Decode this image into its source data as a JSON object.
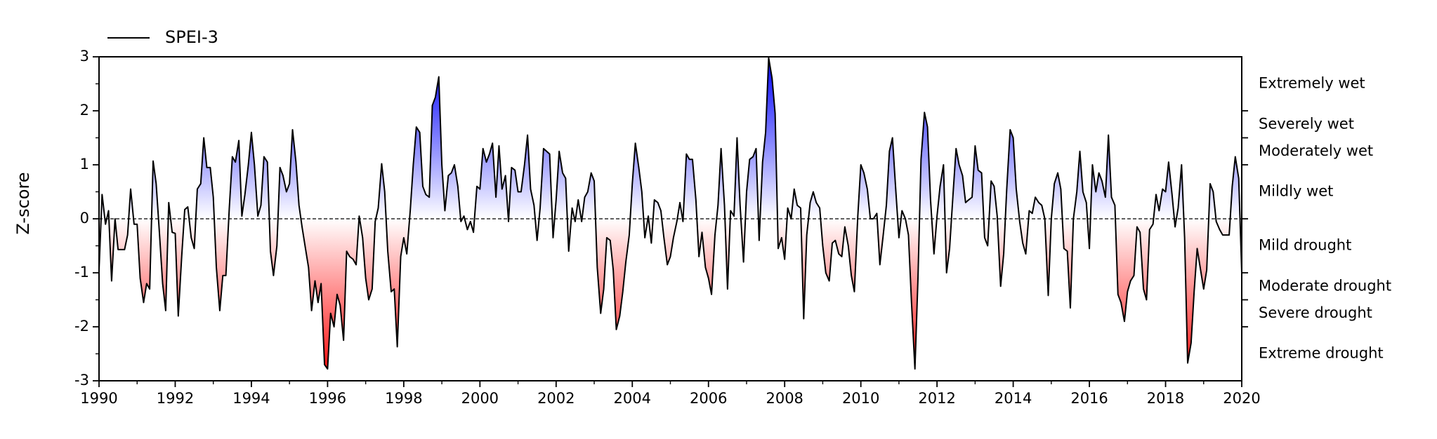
{
  "chart_data": {
    "type": "line",
    "ylabel": "Z-score",
    "x": [
      1990,
      1990.08,
      1990.17,
      1990.25,
      1990.33,
      1990.42,
      1990.5,
      1990.58,
      1990.67,
      1990.75,
      1990.83,
      1990.92,
      1991,
      1991.08,
      1991.17,
      1991.25,
      1991.33,
      1991.42,
      1991.5,
      1991.58,
      1991.67,
      1991.75,
      1991.83,
      1991.92,
      1992,
      1992.08,
      1992.17,
      1992.25,
      1992.33,
      1992.42,
      1992.5,
      1992.58,
      1992.67,
      1992.75,
      1992.83,
      1992.92,
      1993,
      1993.08,
      1993.17,
      1993.25,
      1993.33,
      1993.42,
      1993.5,
      1993.58,
      1993.67,
      1993.75,
      1993.83,
      1993.92,
      1994,
      1994.08,
      1994.17,
      1994.25,
      1994.33,
      1994.42,
      1994.5,
      1994.58,
      1994.67,
      1994.75,
      1994.83,
      1994.92,
      1995,
      1995.08,
      1995.17,
      1995.25,
      1995.33,
      1995.42,
      1995.5,
      1995.58,
      1995.67,
      1995.75,
      1995.83,
      1995.92,
      1996,
      1996.08,
      1996.17,
      1996.25,
      1996.33,
      1996.42,
      1996.5,
      1996.58,
      1996.67,
      1996.75,
      1996.83,
      1996.92,
      1997,
      1997.08,
      1997.17,
      1997.25,
      1997.33,
      1997.42,
      1997.5,
      1997.58,
      1997.67,
      1997.75,
      1997.83,
      1997.92,
      1998,
      1998.08,
      1998.17,
      1998.25,
      1998.33,
      1998.42,
      1998.5,
      1998.58,
      1998.67,
      1998.75,
      1998.83,
      1998.92,
      1999,
      1999.08,
      1999.17,
      1999.25,
      1999.33,
      1999.42,
      1999.5,
      1999.58,
      1999.67,
      1999.75,
      1999.83,
      1999.92,
      2000,
      2000.08,
      2000.17,
      2000.25,
      2000.33,
      2000.42,
      2000.5,
      2000.58,
      2000.67,
      2000.75,
      2000.83,
      2000.92,
      2001,
      2001.08,
      2001.17,
      2001.25,
      2001.33,
      2001.42,
      2001.5,
      2001.58,
      2001.67,
      2001.75,
      2001.83,
      2001.92,
      2002,
      2002.08,
      2002.17,
      2002.25,
      2002.33,
      2002.42,
      2002.5,
      2002.58,
      2002.67,
      2002.75,
      2002.83,
      2002.92,
      2003,
      2003.08,
      2003.17,
      2003.25,
      2003.33,
      2003.42,
      2003.5,
      2003.58,
      2003.67,
      2003.75,
      2003.83,
      2003.92,
      2004,
      2004.08,
      2004.17,
      2004.25,
      2004.33,
      2004.42,
      2004.5,
      2004.58,
      2004.67,
      2004.75,
      2004.83,
      2004.92,
      2005,
      2005.08,
      2005.17,
      2005.25,
      2005.33,
      2005.42,
      2005.5,
      2005.58,
      2005.67,
      2005.75,
      2005.83,
      2005.92,
      2006,
      2006.08,
      2006.17,
      2006.25,
      2006.33,
      2006.42,
      2006.5,
      2006.58,
      2006.67,
      2006.75,
      2006.83,
      2006.92,
      2007,
      2007.08,
      2007.17,
      2007.25,
      2007.33,
      2007.42,
      2007.5,
      2007.58,
      2007.67,
      2007.75,
      2007.83,
      2007.92,
      2008,
      2008.08,
      2008.17,
      2008.25,
      2008.33,
      2008.42,
      2008.5,
      2008.58,
      2008.67,
      2008.75,
      2008.83,
      2008.92,
      2009,
      2009.08,
      2009.17,
      2009.25,
      2009.33,
      2009.42,
      2009.5,
      2009.58,
      2009.67,
      2009.75,
      2009.83,
      2009.92,
      2010,
      2010.08,
      2010.17,
      2010.25,
      2010.33,
      2010.42,
      2010.5,
      2010.58,
      2010.67,
      2010.75,
      2010.83,
      2010.92,
      2011,
      2011.08,
      2011.17,
      2011.25,
      2011.33,
      2011.42,
      2011.5,
      2011.58,
      2011.67,
      2011.75,
      2011.83,
      2011.92,
      2012,
      2012.08,
      2012.17,
      2012.25,
      2012.33,
      2012.42,
      2012.5,
      2012.58,
      2012.67,
      2012.75,
      2012.83,
      2012.92,
      2013,
      2013.08,
      2013.17,
      2013.25,
      2013.33,
      2013.42,
      2013.5,
      2013.58,
      2013.67,
      2013.75,
      2013.83,
      2013.92,
      2014,
      2014.08,
      2014.17,
      2014.25,
      2014.33,
      2014.42,
      2014.5,
      2014.58,
      2014.67,
      2014.75,
      2014.83,
      2014.92,
      2015,
      2015.08,
      2015.17,
      2015.25,
      2015.33,
      2015.42,
      2015.5,
      2015.58,
      2015.67,
      2015.75,
      2015.83,
      2015.92,
      2016,
      2016.08,
      2016.17,
      2016.25,
      2016.33,
      2016.42,
      2016.5,
      2016.58,
      2016.67,
      2016.75,
      2016.83,
      2016.92,
      2017,
      2017.08,
      2017.17,
      2017.25,
      2017.33,
      2017.42,
      2017.5,
      2017.58,
      2017.67,
      2017.75,
      2017.83,
      2017.92,
      2018,
      2018.08,
      2018.17,
      2018.25,
      2018.33,
      2018.42,
      2018.5,
      2018.58,
      2018.67,
      2018.75,
      2018.83,
      2018.92,
      2019,
      2019.08,
      2019.17,
      2019.25,
      2019.33,
      2019.42,
      2019.5,
      2019.58,
      2019.67,
      2019.75,
      2019.83,
      2019.92,
      2020
    ],
    "series": [
      {
        "name": "SPEI-3",
        "color": "#000000",
        "values": [
          -0.95,
          0.45,
          -0.1,
          0.15,
          -1.15,
          0.0,
          -0.57,
          -0.57,
          -0.57,
          -0.3,
          0.55,
          -0.1,
          -0.1,
          -1.1,
          -1.55,
          -1.2,
          -1.3,
          1.07,
          0.65,
          -0.2,
          -1.2,
          -1.7,
          0.3,
          -0.25,
          -0.27,
          -1.8,
          -0.7,
          0.17,
          0.22,
          -0.35,
          -0.55,
          0.55,
          0.65,
          1.5,
          0.95,
          0.95,
          0.4,
          -0.9,
          -1.7,
          -1.05,
          -1.05,
          0.2,
          1.15,
          1.05,
          1.45,
          0.05,
          0.45,
          1.0,
          1.6,
          1.0,
          0.05,
          0.25,
          1.15,
          1.05,
          -0.6,
          -1.05,
          -0.5,
          0.95,
          0.8,
          0.5,
          0.65,
          1.65,
          1.05,
          0.25,
          -0.15,
          -0.55,
          -0.9,
          -1.7,
          -1.15,
          -1.55,
          -1.2,
          -2.7,
          -2.78,
          -1.75,
          -2.0,
          -1.4,
          -1.6,
          -2.25,
          -0.6,
          -0.7,
          -0.75,
          -0.85,
          0.05,
          -0.35,
          -1.1,
          -1.5,
          -1.3,
          -0.05,
          0.2,
          1.02,
          0.5,
          -0.6,
          -1.35,
          -1.3,
          -2.37,
          -0.7,
          -0.35,
          -0.65,
          0.15,
          1.0,
          1.7,
          1.6,
          0.6,
          0.45,
          0.4,
          2.1,
          2.25,
          2.63,
          1.0,
          0.15,
          0.8,
          0.85,
          1.0,
          0.6,
          -0.05,
          0.05,
          -0.2,
          -0.05,
          -0.25,
          0.6,
          0.55,
          1.3,
          1.05,
          1.2,
          1.4,
          0.4,
          1.35,
          0.55,
          0.8,
          -0.05,
          0.95,
          0.9,
          0.5,
          0.5,
          1.0,
          1.55,
          0.55,
          0.25,
          -0.4,
          0.2,
          1.3,
          1.25,
          1.2,
          -0.35,
          0.35,
          1.25,
          0.85,
          0.75,
          -0.6,
          0.2,
          -0.05,
          0.35,
          -0.05,
          0.4,
          0.5,
          0.85,
          0.7,
          -0.9,
          -1.75,
          -1.3,
          -0.35,
          -0.4,
          -0.95,
          -2.05,
          -1.8,
          -1.35,
          -0.8,
          -0.3,
          0.65,
          1.4,
          0.95,
          0.5,
          -0.35,
          0.05,
          -0.45,
          0.35,
          0.3,
          0.15,
          -0.35,
          -0.85,
          -0.7,
          -0.35,
          -0.05,
          0.3,
          -0.05,
          1.2,
          1.1,
          1.1,
          0.35,
          -0.7,
          -0.25,
          -0.9,
          -1.1,
          -1.4,
          -0.3,
          0.25,
          1.3,
          0.25,
          -1.3,
          0.15,
          0.05,
          1.5,
          0.25,
          -0.8,
          0.5,
          1.1,
          1.15,
          1.3,
          -0.4,
          1.05,
          1.6,
          2.98,
          2.6,
          1.95,
          -0.55,
          -0.35,
          -0.75,
          0.2,
          0.0,
          0.55,
          0.25,
          0.2,
          -1.85,
          -0.3,
          0.3,
          0.5,
          0.3,
          0.2,
          -0.5,
          -1.0,
          -1.15,
          -0.45,
          -0.4,
          -0.65,
          -0.7,
          -0.15,
          -0.5,
          -1.05,
          -1.35,
          0.05,
          1.0,
          0.85,
          0.55,
          0.0,
          0.0,
          0.1,
          -0.85,
          -0.35,
          0.25,
          1.25,
          1.5,
          0.5,
          -0.35,
          0.15,
          0.0,
          -0.3,
          -1.55,
          -2.78,
          -1.1,
          1.1,
          1.97,
          1.7,
          0.35,
          -0.65,
          0.05,
          0.6,
          1.0,
          -1.0,
          -0.55,
          0.45,
          1.3,
          1.0,
          0.8,
          0.3,
          0.35,
          0.4,
          1.35,
          0.9,
          0.85,
          -0.35,
          -0.5,
          0.7,
          0.6,
          0.05,
          -1.25,
          -0.65,
          0.55,
          1.65,
          1.5,
          0.55,
          -0.05,
          -0.45,
          -0.65,
          0.15,
          0.1,
          0.4,
          0.3,
          0.25,
          0.0,
          -1.42,
          0.0,
          0.65,
          0.85,
          0.55,
          -0.55,
          -0.6,
          -1.65,
          0.0,
          0.5,
          1.25,
          0.5,
          0.3,
          -0.55,
          1.0,
          0.5,
          0.85,
          0.7,
          0.4,
          1.55,
          0.4,
          0.25,
          -1.4,
          -1.55,
          -1.9,
          -1.35,
          -1.15,
          -1.05,
          -0.15,
          -0.25,
          -1.3,
          -1.5,
          -0.2,
          -0.1,
          0.45,
          0.15,
          0.55,
          0.5,
          1.05,
          0.45,
          -0.15,
          0.2,
          1.0,
          -0.35,
          -2.67,
          -2.3,
          -1.35,
          -0.55,
          -0.95,
          -1.3,
          -0.95,
          0.65,
          0.5,
          -0.05,
          -0.2,
          -0.3,
          -0.3,
          -0.3,
          0.6,
          1.15,
          0.75,
          -1.0
        ]
      }
    ],
    "positive_color": "#0000ff",
    "negative_color": "#ff0000",
    "xlim": [
      1990,
      2020
    ],
    "xticks": [
      1990,
      1992,
      1994,
      1996,
      1998,
      2000,
      2002,
      2004,
      2006,
      2008,
      2010,
      2012,
      2014,
      2016,
      2018,
      2020
    ],
    "xminorticks": [
      1991,
      1993,
      1995,
      1997,
      1999,
      2001,
      2003,
      2005,
      2007,
      2009,
      2011,
      2013,
      2015,
      2017,
      2019
    ],
    "ylim": [
      -3,
      3
    ],
    "yticks": [
      -3,
      -2,
      -1,
      0,
      1,
      2,
      3
    ],
    "yminorticks": [
      -2.5,
      -1.5,
      -0.5,
      0.5,
      1.5,
      2.5
    ],
    "y2lim": [
      -3,
      3
    ],
    "y2ticks": [
      -2,
      -1.5,
      -1,
      0,
      1,
      1.5,
      2
    ],
    "classes": [
      {
        "label": "Extremely wet",
        "range": [
          2,
          3
        ]
      },
      {
        "label": "Severely wet",
        "range": [
          1.5,
          2
        ]
      },
      {
        "label": "Moderately wet",
        "range": [
          1,
          1.5
        ]
      },
      {
        "label": "Mildly wet",
        "range": [
          0,
          1
        ]
      },
      {
        "label": "Mild drought",
        "range": [
          -1,
          0
        ]
      },
      {
        "label": "Moderate drought",
        "range": [
          -1.5,
          -1
        ]
      },
      {
        "label": "Severe drought",
        "range": [
          -2,
          -1.5
        ]
      },
      {
        "label": "Extreme drought",
        "range": [
          -3,
          -2
        ]
      }
    ],
    "zero_line": true,
    "legend": "upper left"
  }
}
